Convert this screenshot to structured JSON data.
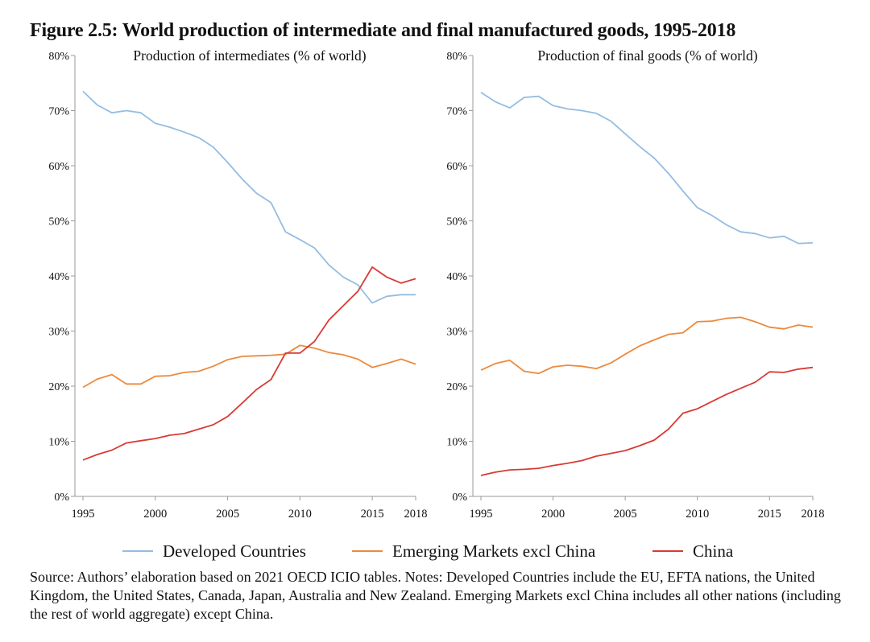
{
  "figure_title": "Figure 2.5: World production of intermediate and final manufactured goods, 1995-2018",
  "colors": {
    "developed": "#94bde2",
    "emerging": "#ec8a3e",
    "china": "#d93a34",
    "axis": "#9a9a9a"
  },
  "legend": [
    {
      "label": "Developed Countries",
      "color": "#94bde2"
    },
    {
      "label": "Emerging Markets excl China",
      "color": "#ec8a3e"
    },
    {
      "label": "China",
      "color": "#d93a34"
    }
  ],
  "source_note": "Source: Authors’ elaboration based on 2021 OECD ICIO tables. Notes: Developed Countries include the EU, EFTA nations, the United Kingdom, the United States, Canada, Japan, Australia and New Zealand. Emerging Markets excl China includes all other nations (including the rest of world aggregate) except China.",
  "chart_data": [
    {
      "type": "line",
      "title": "Production of intermediates (% of world)",
      "x": [
        1995,
        1996,
        1997,
        1998,
        1999,
        2000,
        2001,
        2002,
        2003,
        2004,
        2005,
        2006,
        2007,
        2008,
        2009,
        2010,
        2011,
        2012,
        2013,
        2014,
        2015,
        2016,
        2017,
        2018
      ],
      "x_ticks": [
        "1995",
        "2000",
        "2005",
        "2010",
        "2015",
        "2018"
      ],
      "y_ticks": [
        "0%",
        "10%",
        "20%",
        "30%",
        "40%",
        "50%",
        "60%",
        "70%",
        "80%"
      ],
      "ylim": [
        0,
        80
      ],
      "xlim": [
        1995,
        2018
      ],
      "grid": false,
      "series": [
        {
          "name": "Developed Countries",
          "color": "#94bde2",
          "values": [
            73.5,
            71.0,
            69.6,
            70.0,
            69.6,
            67.7,
            67.0,
            66.1,
            65.1,
            63.4,
            60.6,
            57.6,
            55.0,
            53.3,
            48.0,
            46.6,
            45.1,
            42.0,
            39.8,
            38.4,
            35.1,
            36.3,
            36.6,
            36.6
          ]
        },
        {
          "name": "Emerging Markets excl China",
          "color": "#ec8a3e",
          "values": [
            19.8,
            21.3,
            22.1,
            20.4,
            20.4,
            21.8,
            21.9,
            22.5,
            22.7,
            23.6,
            24.8,
            25.4,
            25.5,
            25.6,
            25.8,
            27.4,
            26.9,
            26.1,
            25.7,
            24.9,
            23.4,
            24.1,
            24.9,
            24.0
          ]
        },
        {
          "name": "China",
          "color": "#d93a34",
          "values": [
            6.6,
            7.6,
            8.4,
            9.7,
            10.1,
            10.5,
            11.1,
            11.4,
            12.2,
            13.0,
            14.5,
            16.9,
            19.4,
            21.2,
            26.0,
            26.0,
            28.1,
            32.0,
            34.6,
            37.2,
            41.6,
            39.8,
            38.7,
            39.5
          ]
        }
      ]
    },
    {
      "type": "line",
      "title": "Production of final goods (% of world)",
      "x": [
        1995,
        1996,
        1997,
        1998,
        1999,
        2000,
        2001,
        2002,
        2003,
        2004,
        2005,
        2006,
        2007,
        2008,
        2009,
        2010,
        2011,
        2012,
        2013,
        2014,
        2015,
        2016,
        2017,
        2018
      ],
      "x_ticks": [
        "1995",
        "2000",
        "2005",
        "2010",
        "2015",
        "2018"
      ],
      "y_ticks": [
        "0%",
        "10%",
        "20%",
        "30%",
        "40%",
        "50%",
        "60%",
        "70%",
        "80%"
      ],
      "ylim": [
        0,
        80
      ],
      "xlim": [
        1995,
        2018
      ],
      "grid": false,
      "series": [
        {
          "name": "Developed Countries",
          "color": "#94bde2",
          "values": [
            73.3,
            71.6,
            70.5,
            72.4,
            72.6,
            70.9,
            70.3,
            70.0,
            69.5,
            68.1,
            65.8,
            63.5,
            61.4,
            58.6,
            55.4,
            52.4,
            51.0,
            49.3,
            48.0,
            47.7,
            46.9,
            47.2,
            45.9,
            46.0
          ]
        },
        {
          "name": "Emerging Markets excl China",
          "color": "#ec8a3e",
          "values": [
            22.9,
            24.1,
            24.7,
            22.7,
            22.3,
            23.5,
            23.8,
            23.6,
            23.2,
            24.2,
            25.8,
            27.3,
            28.4,
            29.4,
            29.7,
            31.7,
            31.8,
            32.3,
            32.5,
            31.7,
            30.7,
            30.4,
            31.1,
            30.7
          ]
        },
        {
          "name": "China",
          "color": "#d93a34",
          "values": [
            3.8,
            4.4,
            4.8,
            4.9,
            5.1,
            5.6,
            6.0,
            6.5,
            7.3,
            7.8,
            8.3,
            9.2,
            10.2,
            12.2,
            15.1,
            15.9,
            17.2,
            18.5,
            19.6,
            20.7,
            22.6,
            22.5,
            23.1,
            23.4
          ]
        }
      ]
    }
  ]
}
